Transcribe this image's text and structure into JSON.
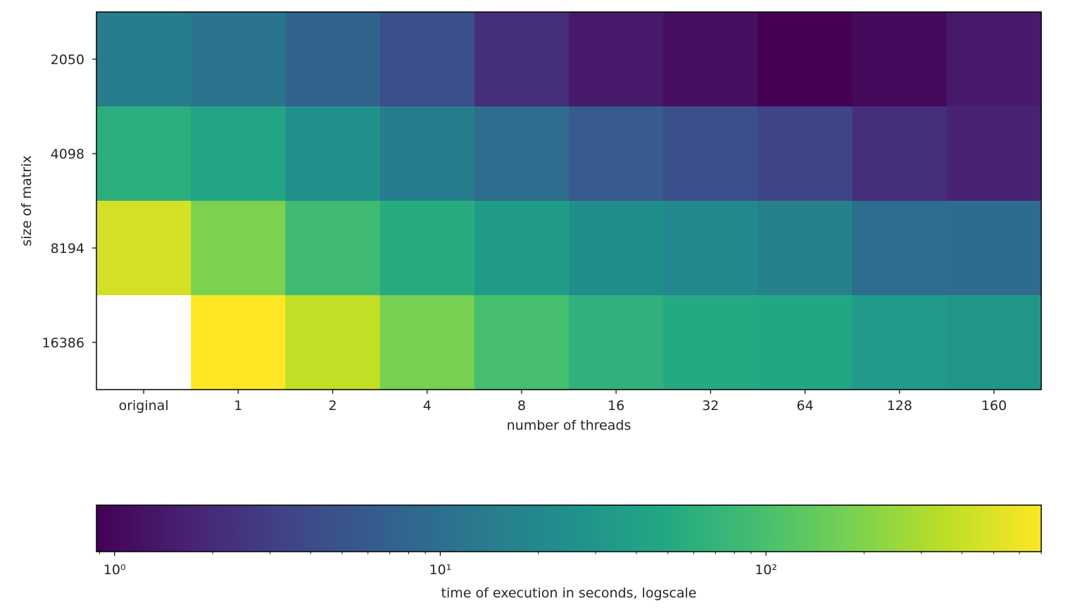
{
  "chart_data": {
    "type": "heatmap",
    "x_categories": [
      "original",
      "1",
      "2",
      "4",
      "8",
      "16",
      "32",
      "64",
      "128",
      "160"
    ],
    "y_categories": [
      "2050",
      "4098",
      "8194",
      "16386"
    ],
    "values": [
      [
        14.5,
        11.5,
        7.5,
        4.5,
        2.2,
        1.45,
        1.15,
        0.88,
        1.05,
        1.45
      ],
      [
        60,
        45,
        26,
        14.5,
        9.5,
        6.0,
        4.5,
        3.6,
        2.2,
        1.7
      ],
      [
        450,
        190,
        85,
        55,
        35,
        24,
        20,
        16.5,
        9.5,
        9.0
      ],
      [
        null,
        700,
        380,
        180,
        95,
        63,
        51,
        48,
        33,
        30
      ]
    ],
    "xlabel": "number of threads",
    "ylabel": "size of matrix",
    "colormap": "viridis",
    "missing_color": "#ffffff",
    "colorbar": {
      "label": "time of execution in seconds, logscale",
      "scale": "log",
      "range": [
        0.88,
        700
      ],
      "major_ticks": [
        1,
        10,
        100
      ],
      "tick_labels": [
        "10⁰",
        "10¹",
        "10²"
      ],
      "orientation": "horizontal",
      "placement": "bottom"
    }
  }
}
